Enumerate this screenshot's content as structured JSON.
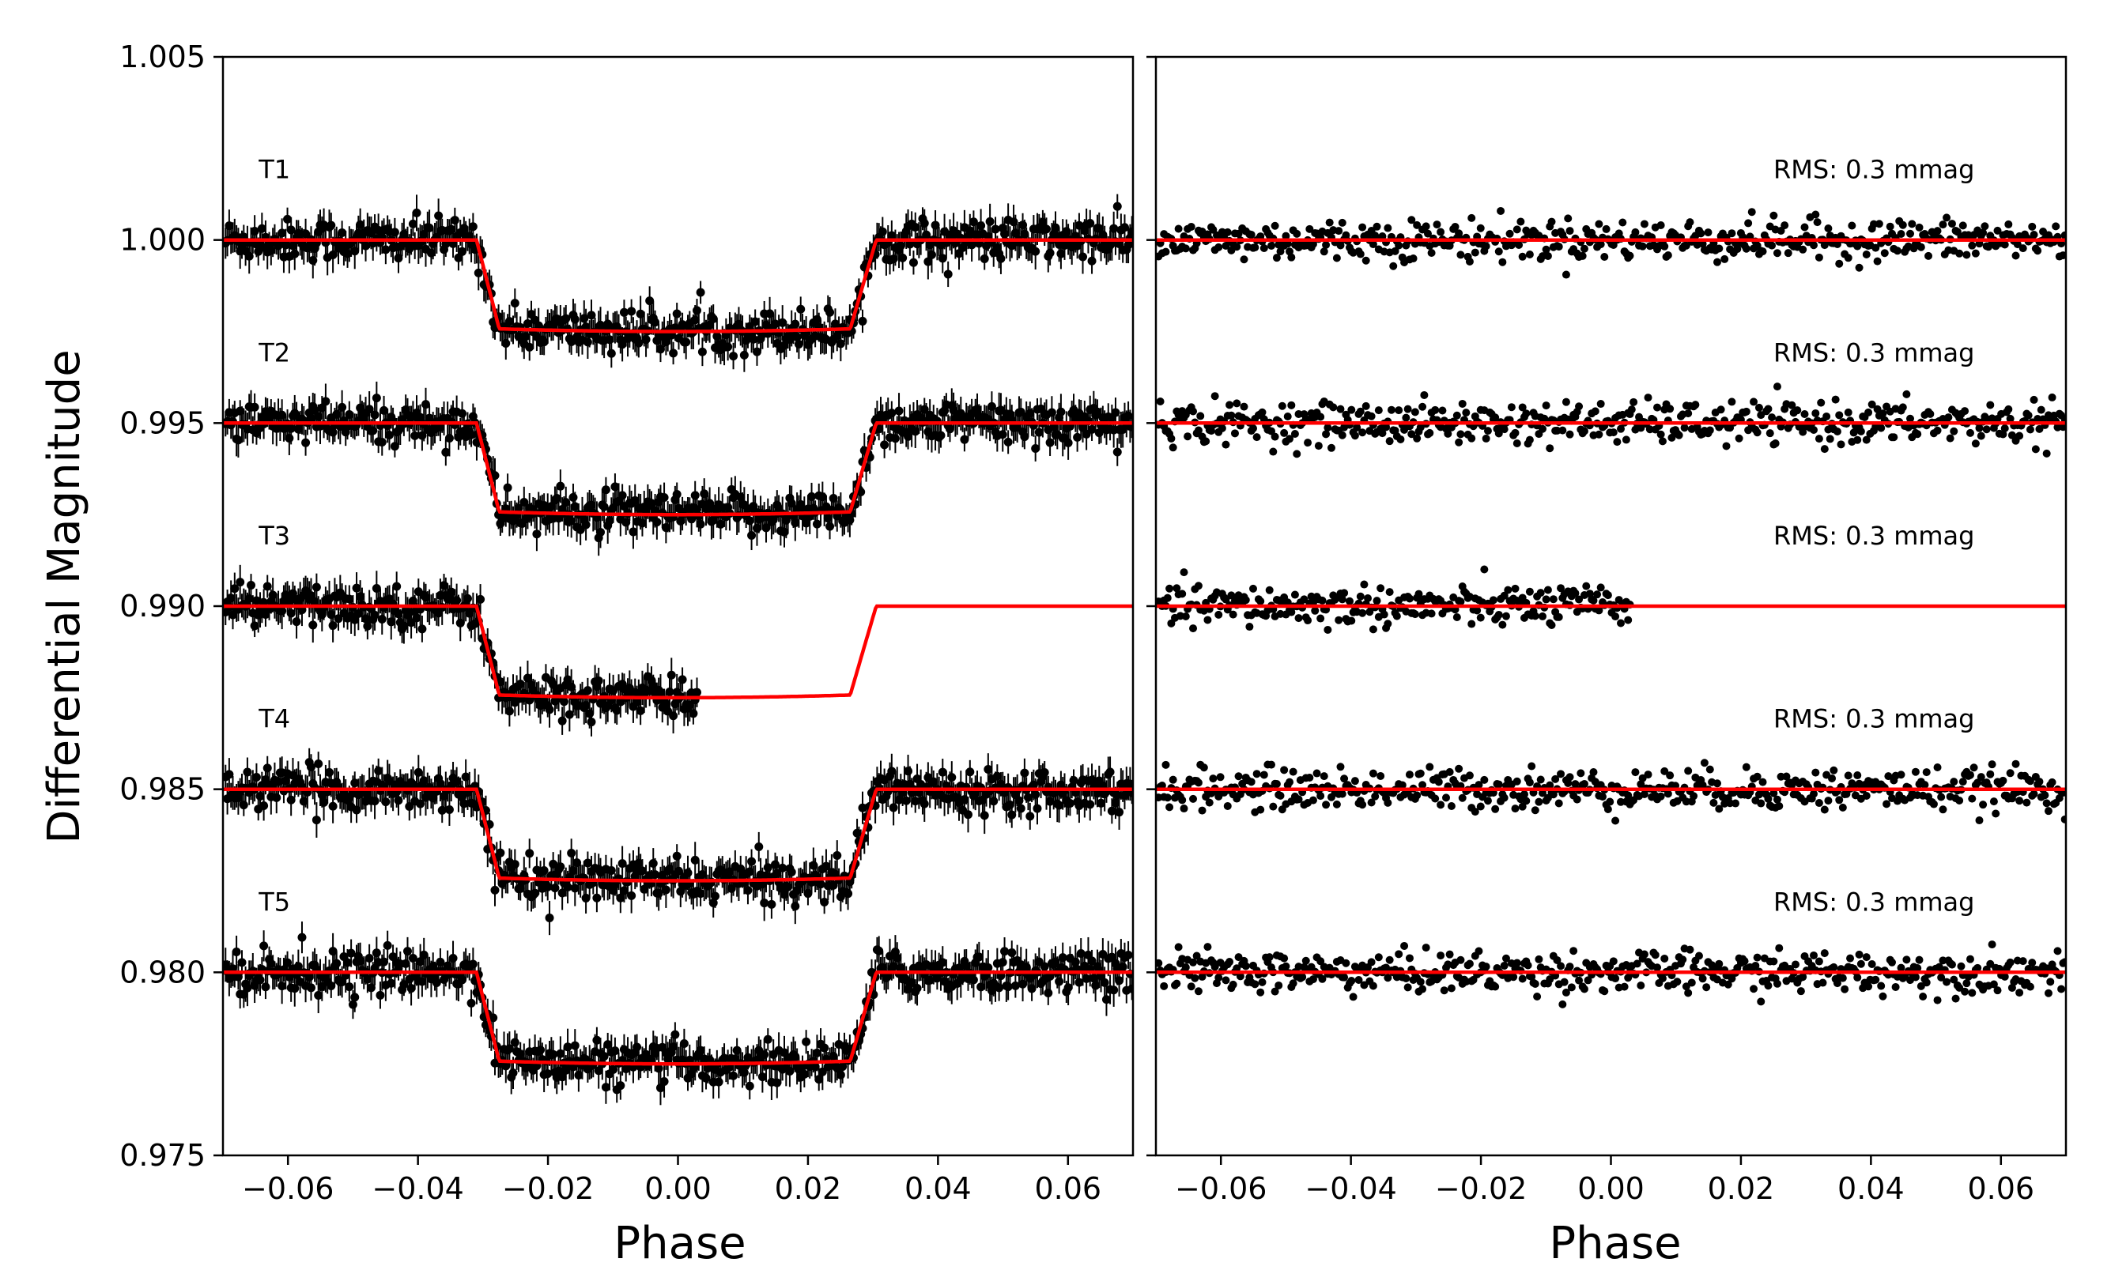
{
  "chart_data": [
    {
      "type": "scatter",
      "panel": "left",
      "xlabel": "Phase",
      "ylabel": "Differential Magnitude",
      "xlim": [
        -0.07,
        0.07
      ],
      "ylim": [
        0.975,
        1.005
      ],
      "x_ticks": [
        -0.06,
        -0.04,
        -0.02,
        0.0,
        0.02,
        0.04,
        0.06
      ],
      "x_tick_labels": [
        "−0.06",
        "−0.04",
        "−0.02",
        "0.00",
        "0.02",
        "0.04",
        "0.06"
      ],
      "y_ticks": [
        0.975,
        0.98,
        0.985,
        0.99,
        0.995,
        1.0,
        1.005
      ],
      "y_tick_labels": [
        "0.975",
        "0.980",
        "0.985",
        "0.990",
        "0.995",
        "1.000",
        "1.005"
      ],
      "series": [
        {
          "name": "T1",
          "baseline": 1.0,
          "transit_depth": 0.0025,
          "ingress": -0.031,
          "egress": 0.03,
          "data_range": [
            -0.07,
            0.07
          ]
        },
        {
          "name": "T2",
          "baseline": 0.995,
          "transit_depth": 0.0025,
          "ingress": -0.031,
          "egress": 0.03,
          "data_range": [
            -0.07,
            0.07
          ]
        },
        {
          "name": "T3",
          "baseline": 0.99,
          "transit_depth": 0.0025,
          "ingress": -0.031,
          "egress": 0.03,
          "data_range": [
            -0.07,
            0.003
          ]
        },
        {
          "name": "T4",
          "baseline": 0.985,
          "transit_depth": 0.0025,
          "ingress": -0.031,
          "egress": 0.03,
          "data_range": [
            -0.07,
            0.07
          ]
        },
        {
          "name": "T5",
          "baseline": 0.98,
          "transit_depth": 0.0025,
          "ingress": -0.031,
          "egress": 0.03,
          "data_range": [
            -0.07,
            0.07
          ]
        }
      ],
      "point_color": "#000000",
      "model_color": "#ff0000",
      "grid": false
    },
    {
      "type": "scatter",
      "panel": "right",
      "xlabel": "Phase",
      "ylabel": "",
      "xlim": [
        -0.07,
        0.07
      ],
      "ylim": [
        0.975,
        1.005
      ],
      "x_ticks": [
        -0.06,
        -0.04,
        -0.02,
        0.0,
        0.02,
        0.04,
        0.06
      ],
      "x_tick_labels": [
        "−0.06",
        "−0.04",
        "−0.02",
        "0.00",
        "0.02",
        "0.04",
        "0.06"
      ],
      "series": [
        {
          "baseline": 1.0,
          "rms_label": "RMS: 0.3 mmag",
          "data_range": [
            -0.07,
            0.07
          ]
        },
        {
          "baseline": 0.995,
          "rms_label": "RMS: 0.3 mmag",
          "data_range": [
            -0.07,
            0.07
          ]
        },
        {
          "baseline": 0.99,
          "rms_label": "RMS: 0.3 mmag",
          "data_range": [
            -0.07,
            0.003
          ]
        },
        {
          "baseline": 0.985,
          "rms_label": "RMS: 0.3 mmag",
          "data_range": [
            -0.07,
            0.07
          ]
        },
        {
          "baseline": 0.98,
          "rms_label": "RMS: 0.3 mmag",
          "data_range": [
            -0.07,
            0.07
          ]
        }
      ],
      "point_color": "#000000",
      "model_color": "#ff0000",
      "grid": false
    }
  ]
}
